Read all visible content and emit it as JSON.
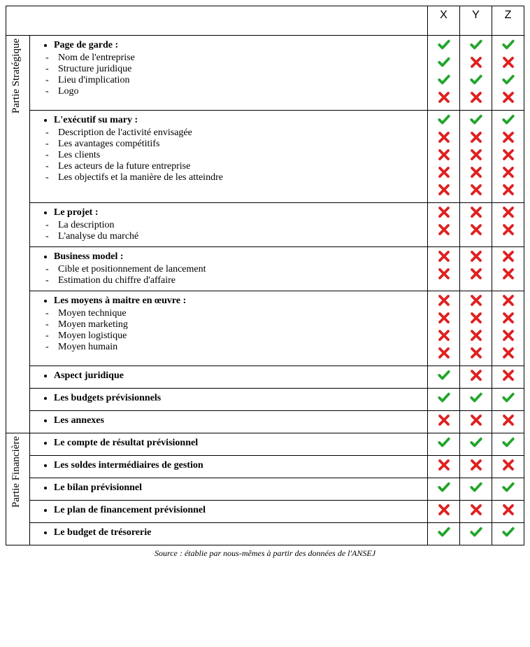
{
  "columns": [
    "X",
    "Y",
    "Z"
  ],
  "vlabel_strategic": "Partie Stratégique",
  "vlabel_financial": "Partie Financière",
  "source_note": "Source : établie par nous-mêmes à partir des données de l'ANSEJ",
  "icon_colors": {
    "check": "#22a52a",
    "cross": "#e02020"
  },
  "strategic": [
    {
      "title": "Page de garde :",
      "items": [
        "Nom de l'entreprise",
        "Structure juridique",
        "Lieu d'implication",
        "Logo"
      ],
      "marks": {
        "X": [
          1,
          1,
          1,
          0
        ],
        "Y": [
          1,
          0,
          1,
          0
        ],
        "Z": [
          1,
          0,
          1,
          0
        ]
      }
    },
    {
      "title": "L'exécutif su mary :",
      "items": [
        "Description de l'activité envisagée",
        "Les avantages compétitifs",
        "Les clients",
        "Les acteurs de la future entreprise",
        "Les objectifs et la manière de les atteindre"
      ],
      "marks": {
        "X": [
          1,
          0,
          0,
          0,
          0
        ],
        "Y": [
          1,
          0,
          0,
          0,
          0
        ],
        "Z": [
          1,
          0,
          0,
          0,
          0
        ]
      }
    },
    {
      "title": "Le projet :",
      "items": [
        "La description",
        "L'analyse du marché"
      ],
      "marks": {
        "X": [
          0,
          0
        ],
        "Y": [
          0,
          0
        ],
        "Z": [
          0,
          0
        ]
      }
    },
    {
      "title": "Business model :",
      "items": [
        "Cible et positionnement de lancement",
        "Estimation du chiffre d'affaire"
      ],
      "marks": {
        "X": [
          0,
          0
        ],
        "Y": [
          0,
          0
        ],
        "Z": [
          0,
          0
        ]
      }
    },
    {
      "title": "Les moyens à maitre en œuvre :",
      "items": [
        "Moyen technique",
        "Moyen marketing",
        "Moyen logistique",
        "Moyen humain"
      ],
      "marks": {
        "X": [
          0,
          0,
          0,
          0
        ],
        "Y": [
          0,
          0,
          0,
          0
        ],
        "Z": [
          0,
          0,
          0,
          0
        ]
      }
    },
    {
      "title": "Aspect juridique",
      "items": [],
      "marks": {
        "X": [
          1
        ],
        "Y": [
          0
        ],
        "Z": [
          0
        ]
      }
    },
    {
      "title": "Les budgets prévisionnels",
      "items": [],
      "marks": {
        "X": [
          1
        ],
        "Y": [
          1
        ],
        "Z": [
          1
        ]
      }
    },
    {
      "title": "Les annexes",
      "items": [],
      "marks": {
        "X": [
          0
        ],
        "Y": [
          0
        ],
        "Z": [
          0
        ]
      }
    }
  ],
  "financial": [
    {
      "title": "Le compte de résultat prévisionnel",
      "items": [],
      "marks": {
        "X": [
          1
        ],
        "Y": [
          1
        ],
        "Z": [
          1
        ]
      }
    },
    {
      "title": "Les soldes intermédiaires de gestion",
      "items": [],
      "marks": {
        "X": [
          0
        ],
        "Y": [
          0
        ],
        "Z": [
          0
        ]
      }
    },
    {
      "title": "Le bilan prévisionnel",
      "items": [],
      "marks": {
        "X": [
          1
        ],
        "Y": [
          1
        ],
        "Z": [
          1
        ]
      }
    },
    {
      "title": "Le plan de financement prévisionnel",
      "items": [],
      "marks": {
        "X": [
          0
        ],
        "Y": [
          0
        ],
        "Z": [
          0
        ]
      }
    },
    {
      "title": "Le budget de trésorerie",
      "items": [],
      "marks": {
        "X": [
          1
        ],
        "Y": [
          1
        ],
        "Z": [
          1
        ]
      }
    }
  ]
}
